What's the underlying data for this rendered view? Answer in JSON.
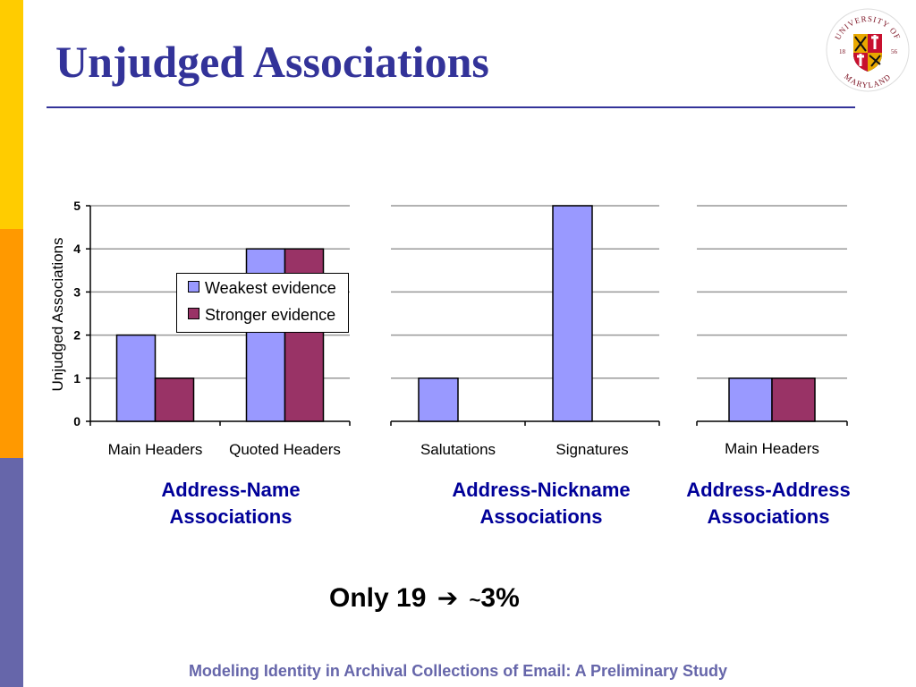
{
  "slide": {
    "title": "Unjudged Associations",
    "footer": "Modeling Identity in Archival Collections of Email: A Preliminary Study",
    "takeaway_prefix": "Only 19",
    "takeaway_arrow": "➔",
    "takeaway_tilde": "~",
    "takeaway_suffix": "3%",
    "seal": {
      "top_text": "UNIVERSITY OF",
      "bottom_text": "MARYLAND",
      "year_left": "18",
      "year_right": "56"
    },
    "colors": {
      "title": "#333399",
      "label": "#000099",
      "footer": "#6666AA",
      "sidebar": [
        "#FFCC00",
        "#FF9900",
        "#6666AA"
      ]
    }
  },
  "legend": {
    "weakest": "Weakest evidence",
    "stronger": "Stronger evidence"
  },
  "groups": [
    {
      "line1": "Address-Name",
      "line2": "Associations"
    },
    {
      "line1": "Address-Nickname",
      "line2": "Associations"
    },
    {
      "line1": "Address-Address",
      "line2": "Associations"
    }
  ],
  "chart_data": [
    {
      "type": "bar",
      "ylabel": "Unjudged Associations",
      "ylim": [
        0,
        5
      ],
      "yticks": [
        "0",
        "1",
        "2",
        "3",
        "4",
        "5"
      ],
      "categories": [
        "Main Headers",
        "Quoted Headers"
      ],
      "series": [
        {
          "name": "Weakest evidence",
          "color": "#9999FF",
          "values": [
            2,
            4
          ]
        },
        {
          "name": "Stronger evidence",
          "color": "#993366",
          "values": [
            1,
            4
          ]
        }
      ],
      "grid": true,
      "legend": "center-right"
    },
    {
      "type": "bar",
      "ylim": [
        0,
        5
      ],
      "categories": [
        "Salutations",
        "Signatures"
      ],
      "series": [
        {
          "name": "Weakest evidence",
          "color": "#9999FF",
          "values": [
            1,
            5
          ]
        },
        {
          "name": "Stronger evidence",
          "color": "#993366",
          "values": [
            0,
            0
          ]
        }
      ],
      "grid": true
    },
    {
      "type": "bar",
      "ylim": [
        0,
        5
      ],
      "categories": [
        "Main Headers"
      ],
      "series": [
        {
          "name": "Weakest evidence",
          "color": "#9999FF",
          "values": [
            1
          ]
        },
        {
          "name": "Stronger evidence",
          "color": "#993366",
          "values": [
            1
          ]
        }
      ],
      "grid": true
    }
  ]
}
